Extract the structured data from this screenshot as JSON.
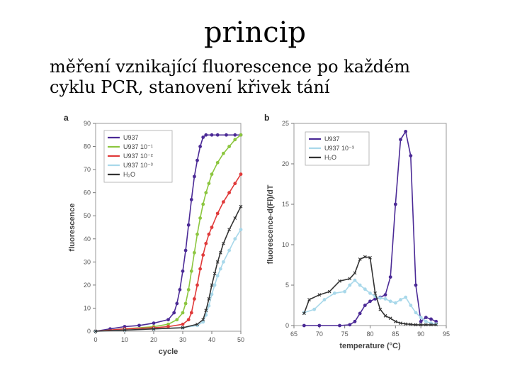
{
  "slide": {
    "title": "princip",
    "subtitle_lines": [
      "měření vznikající fluorescence po každém",
      "cyklu PCR, stanovení křivek tání"
    ]
  },
  "chart_data": [
    {
      "type": "line",
      "panel": "a",
      "xlabel": "cycle",
      "ylabel": "fluorescence",
      "xlim": [
        0,
        50
      ],
      "ylim": [
        0,
        90
      ],
      "xticks": [
        0,
        10,
        20,
        30,
        40,
        50
      ],
      "yticks": [
        0,
        10,
        20,
        30,
        40,
        50,
        60,
        70,
        80,
        90
      ],
      "legend_position": "top-left",
      "series": [
        {
          "name": "U937",
          "color": "#4b2a96",
          "marker": "circle",
          "x": [
            0,
            5,
            10,
            15,
            20,
            25,
            27,
            28,
            29,
            30,
            31,
            32,
            33,
            34,
            35,
            36,
            37,
            38,
            40,
            42,
            45,
            48,
            50
          ],
          "y": [
            0,
            1,
            2,
            2.5,
            3.5,
            5,
            8,
            12,
            18,
            26,
            35,
            46,
            57,
            67,
            74,
            80,
            84,
            85,
            85,
            85,
            85,
            85,
            85
          ]
        },
        {
          "name": "U937 10⁻¹",
          "color": "#8cc63f",
          "marker": "circle",
          "x": [
            0,
            10,
            20,
            25,
            28,
            30,
            31,
            32,
            33,
            34,
            35,
            36,
            37,
            38,
            39,
            40,
            42,
            44,
            46,
            48,
            50
          ],
          "y": [
            0,
            1,
            2,
            3,
            5,
            8,
            12,
            18,
            26,
            34,
            42,
            49,
            55,
            60,
            64,
            68,
            73,
            77,
            80,
            83,
            85
          ]
        },
        {
          "name": "U937 10⁻²",
          "color": "#e03a3a",
          "marker": "circle",
          "x": [
            0,
            10,
            20,
            25,
            30,
            32,
            33,
            34,
            35,
            36,
            37,
            38,
            39,
            40,
            42,
            44,
            46,
            48,
            50
          ],
          "y": [
            0,
            1,
            1.5,
            2,
            3,
            5,
            8,
            14,
            20,
            27,
            33,
            38,
            42,
            45,
            51,
            56,
            60,
            64,
            68
          ]
        },
        {
          "name": "U937 10⁻³",
          "color": "#a8d8ea",
          "marker": "circle",
          "x": [
            0,
            10,
            20,
            30,
            35,
            37,
            38,
            39,
            40,
            41,
            42,
            43,
            44,
            46,
            48,
            50
          ],
          "y": [
            0,
            0.5,
            1,
            1.5,
            2.5,
            4,
            7,
            11,
            16,
            20,
            24,
            27,
            30,
            35,
            40,
            44
          ]
        },
        {
          "name": "H₂O",
          "color": "#333333",
          "marker": "x",
          "x": [
            0,
            10,
            20,
            30,
            35,
            37,
            38,
            39,
            40,
            41,
            42,
            43,
            44,
            46,
            48,
            50
          ],
          "y": [
            0,
            0.5,
            1,
            1.5,
            3,
            5,
            9,
            14,
            20,
            25,
            30,
            34,
            38,
            44,
            49,
            54
          ]
        }
      ]
    },
    {
      "type": "line",
      "panel": "b",
      "xlabel": "temperature (°C)",
      "ylabel": "fluorescence-d(Fl)/dT",
      "xlim": [
        65,
        95
      ],
      "ylim": [
        0,
        25
      ],
      "xticks": [
        65,
        70,
        75,
        80,
        85,
        90,
        95
      ],
      "yticks": [
        0,
        5,
        10,
        15,
        20,
        25
      ],
      "legend_position": "top-left",
      "series": [
        {
          "name": "U937",
          "color": "#4b2a96",
          "marker": "circle",
          "x": [
            67,
            70,
            74,
            76,
            77,
            78,
            79,
            80,
            81,
            82,
            83,
            84,
            85,
            86,
            87,
            88,
            89,
            90,
            91,
            92,
            93
          ],
          "y": [
            0,
            0,
            0,
            0.1,
            0.5,
            1.5,
            2.5,
            3,
            3.3,
            3.5,
            3.8,
            6,
            15,
            23,
            24,
            21,
            5,
            0.5,
            1,
            0.8,
            0.5
          ]
        },
        {
          "name": "U937 10⁻³",
          "color": "#a8d8ea",
          "marker": "circle",
          "x": [
            67,
            69,
            71,
            73,
            75,
            76,
            77,
            78,
            79,
            80,
            81,
            82,
            83,
            84,
            85,
            86,
            87,
            88,
            89,
            90,
            91,
            92,
            93
          ],
          "y": [
            1.6,
            2,
            3.2,
            4,
            4.2,
            5,
            5.6,
            5,
            4.5,
            4,
            3.6,
            3.4,
            3.3,
            3,
            2.8,
            3.2,
            3.5,
            2.5,
            1.6,
            1,
            0.5,
            0.3,
            0.2
          ]
        },
        {
          "name": "H₂O",
          "color": "#333333",
          "marker": "x",
          "x": [
            67,
            68,
            70,
            72,
            74,
            76,
            77,
            78,
            79,
            80,
            81,
            82,
            83,
            84,
            85,
            86,
            87,
            88,
            89,
            90,
            91,
            92,
            93
          ],
          "y": [
            1.5,
            3.2,
            3.8,
            4.2,
            5.5,
            5.8,
            6.5,
            8.2,
            8.5,
            8.4,
            4,
            2,
            1.2,
            0.9,
            0.5,
            0.3,
            0.2,
            0.15,
            0.1,
            0.1,
            0.1,
            0.1,
            0.1
          ]
        }
      ]
    }
  ]
}
